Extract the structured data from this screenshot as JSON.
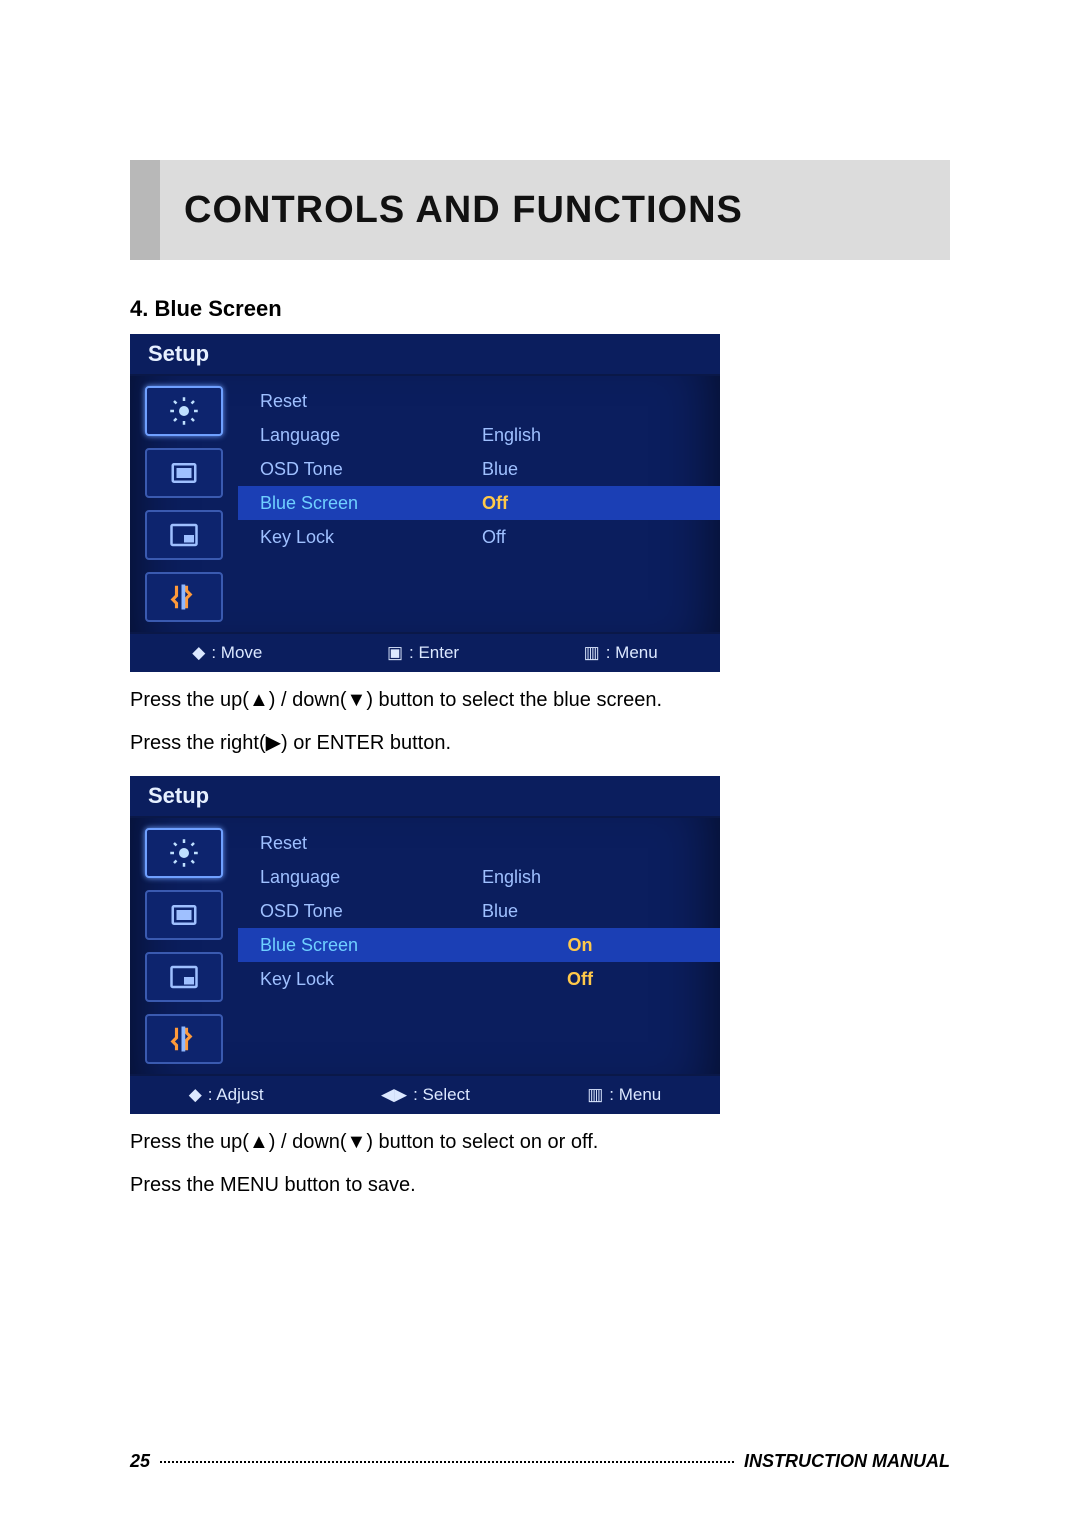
{
  "page": {
    "title": "CONTROLS AND FUNCTIONS",
    "section_heading": "4. Blue Screen",
    "page_number": "25",
    "footer_label": "INSTRUCTION MANUAL"
  },
  "colors": {
    "page_bg": "#ffffff",
    "title_bar_bg": "#dcdcdc",
    "title_stub_bg": "#b8b8b8",
    "osd_bg": "#0b1e5e",
    "osd_row_selected_bg": "#1b3fb5",
    "osd_text": "#9fc0ff",
    "osd_text_bright": "#e6f0ff",
    "osd_highlight_text": "#6fd0ff",
    "osd_value_highlight": "#ffc94a",
    "icon_border": "#3a5ab0",
    "icon_border_active": "#6fa0ff"
  },
  "osd_common": {
    "header": "Setup",
    "sidebar_icons": [
      "brightness-icon",
      "picture-icon",
      "pip-icon",
      "tools-icon"
    ]
  },
  "osd1": {
    "rows": [
      {
        "label": "Reset",
        "value": ""
      },
      {
        "label": "Language",
        "value": "English"
      },
      {
        "label": "OSD Tone",
        "value": "Blue"
      },
      {
        "label": "Blue Screen",
        "value": "Off",
        "selected": true
      },
      {
        "label": "Key Lock",
        "value": "Off"
      }
    ],
    "footer": [
      {
        "glyph": "◆",
        "label": ": Move"
      },
      {
        "glyph": "▣",
        "label": ": Enter"
      },
      {
        "glyph": "▥",
        "label": ": Menu"
      }
    ]
  },
  "instr1_line1": "Press the up(▲) / down(▼) button to select the blue screen.",
  "instr1_line2": "Press the right(▶) or ENTER button.",
  "osd2": {
    "rows": [
      {
        "label": "Reset",
        "value": ""
      },
      {
        "label": "Language",
        "value": "English"
      },
      {
        "label": "OSD Tone",
        "value": "Blue"
      },
      {
        "label": "Blue Screen",
        "value": "On",
        "selected": true,
        "edit": true
      },
      {
        "label": "Key Lock",
        "value": "Off",
        "edit": true
      }
    ],
    "footer": [
      {
        "glyph": "◆",
        "label": ": Adjust"
      },
      {
        "glyph": "◀▶",
        "label": ": Select"
      },
      {
        "glyph": "▥",
        "label": ": Menu"
      }
    ]
  },
  "instr2_line1": "Press the up(▲) / down(▼) button to select on or off.",
  "instr2_line2": "Press the MENU button to save."
}
